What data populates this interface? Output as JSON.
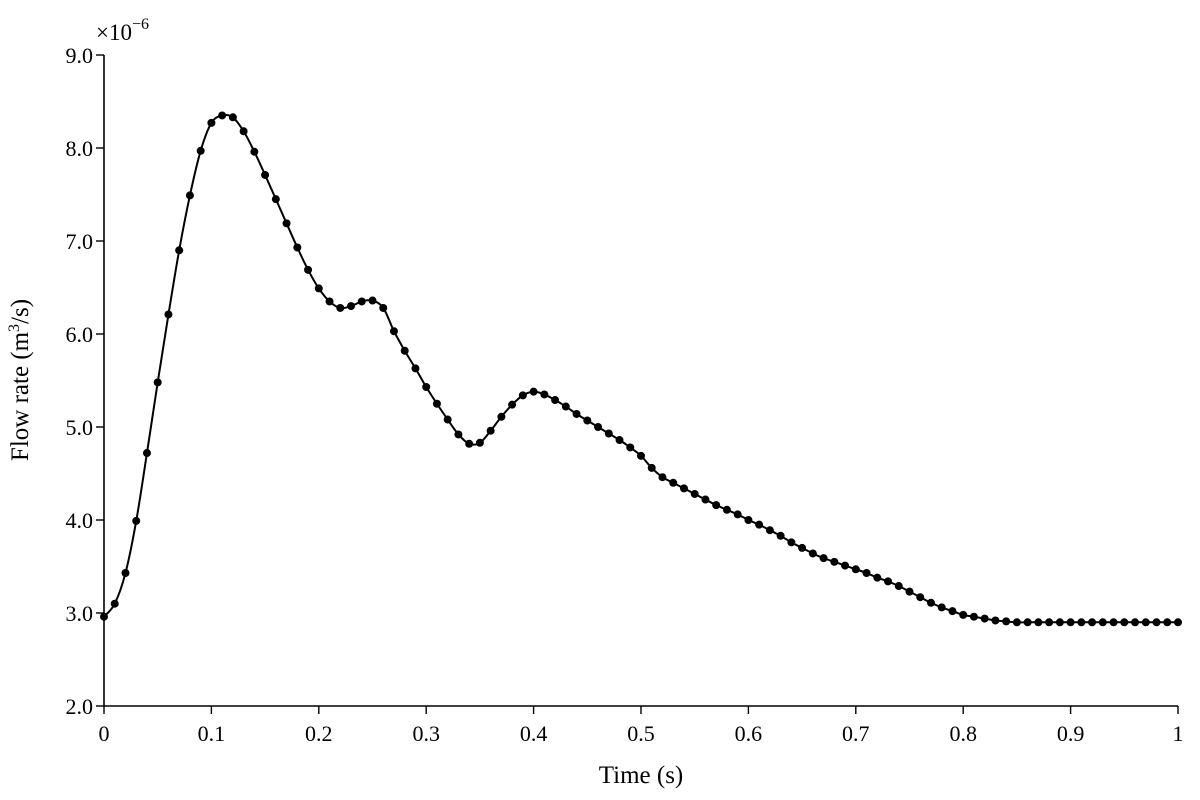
{
  "chart_data": {
    "type": "line",
    "title": "",
    "xlabel": "Time (s)",
    "ylabel": {
      "prefix": "Flow rate (m",
      "sup": "3",
      "suffix": "/s)"
    },
    "multiplier": {
      "base": "×10",
      "exponent": "−6"
    },
    "xlim": [
      0,
      1
    ],
    "ylim": [
      2.0,
      9.0
    ],
    "x_ticks": [
      {
        "value": 0,
        "label": "0"
      },
      {
        "value": 0.1,
        "label": "0.1"
      },
      {
        "value": 0.2,
        "label": "0.2"
      },
      {
        "value": 0.3,
        "label": "0.3"
      },
      {
        "value": 0.4,
        "label": "0.4"
      },
      {
        "value": 0.5,
        "label": "0.5"
      },
      {
        "value": 0.6,
        "label": "0.6"
      },
      {
        "value": 0.7,
        "label": "0.7"
      },
      {
        "value": 0.8,
        "label": "0.8"
      },
      {
        "value": 0.9,
        "label": "0.9"
      },
      {
        "value": 1,
        "label": "1"
      }
    ],
    "y_ticks": [
      {
        "value": 2.0,
        "label": "2.0"
      },
      {
        "value": 3.0,
        "label": "3.0"
      },
      {
        "value": 4.0,
        "label": "4.0"
      },
      {
        "value": 5.0,
        "label": "5.0"
      },
      {
        "value": 6.0,
        "label": "6.0"
      },
      {
        "value": 7.0,
        "label": "7.0"
      },
      {
        "value": 8.0,
        "label": "8.0"
      },
      {
        "value": 9.0,
        "label": "9.0"
      }
    ],
    "grid": false,
    "marker": "circle",
    "line_color": "#000000",
    "series": [
      {
        "x": [
          0,
          0.01,
          0.02,
          0.03,
          0.04,
          0.05,
          0.06,
          0.07,
          0.08,
          0.09,
          0.1,
          0.11,
          0.12,
          0.13,
          0.14,
          0.15,
          0.16,
          0.17,
          0.18,
          0.19,
          0.2,
          0.21,
          0.22,
          0.23,
          0.24,
          0.25,
          0.26,
          0.27,
          0.28,
          0.29,
          0.3,
          0.31,
          0.32,
          0.33,
          0.34,
          0.35,
          0.36,
          0.37,
          0.38,
          0.39,
          0.4,
          0.41,
          0.42,
          0.43,
          0.44,
          0.45,
          0.46,
          0.47,
          0.48,
          0.49,
          0.5,
          0.51,
          0.52,
          0.53,
          0.54,
          0.55,
          0.56,
          0.57,
          0.58,
          0.59,
          0.6,
          0.61,
          0.62,
          0.63,
          0.64,
          0.65,
          0.66,
          0.67,
          0.68,
          0.69,
          0.7,
          0.71,
          0.72,
          0.73,
          0.74,
          0.75,
          0.76,
          0.77,
          0.78,
          0.79,
          0.8,
          0.81,
          0.82,
          0.83,
          0.84,
          0.85,
          0.86,
          0.87,
          0.88,
          0.89,
          0.9,
          0.91,
          0.92,
          0.93,
          0.94,
          0.95,
          0.96,
          0.97,
          0.98,
          0.99,
          1.0
        ],
        "y": [
          2.96,
          3.1,
          3.43,
          3.99,
          4.72,
          5.48,
          6.21,
          6.9,
          7.49,
          7.97,
          8.27,
          8.35,
          8.33,
          8.18,
          7.96,
          7.71,
          7.45,
          7.19,
          6.93,
          6.69,
          6.49,
          6.35,
          6.28,
          6.3,
          6.35,
          6.36,
          6.28,
          6.03,
          5.82,
          5.63,
          5.43,
          5.25,
          5.08,
          4.92,
          4.82,
          4.83,
          4.96,
          5.11,
          5.24,
          5.34,
          5.38,
          5.35,
          5.29,
          5.22,
          5.14,
          5.07,
          5.0,
          4.93,
          4.86,
          4.78,
          4.69,
          4.56,
          4.46,
          4.4,
          4.34,
          4.28,
          4.22,
          4.16,
          4.11,
          4.06,
          4.0,
          3.95,
          3.89,
          3.83,
          3.76,
          3.7,
          3.64,
          3.59,
          3.55,
          3.51,
          3.47,
          3.43,
          3.38,
          3.34,
          3.29,
          3.23,
          3.17,
          3.11,
          3.06,
          3.02,
          2.98,
          2.96,
          2.94,
          2.92,
          2.91,
          2.9,
          2.9,
          2.9,
          2.9,
          2.9,
          2.9,
          2.9,
          2.9,
          2.9,
          2.9,
          2.9,
          2.9,
          2.9,
          2.9,
          2.9,
          2.9
        ]
      }
    ]
  }
}
